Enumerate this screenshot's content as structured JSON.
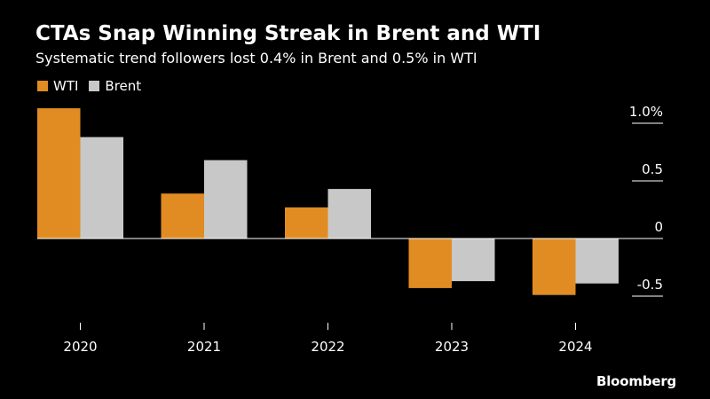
{
  "title": "CTAs Snap Winning Streak in Brent and WTI",
  "subtitle": "Systematic trend followers lost 0.4% in Brent and 0.5% in WTI",
  "source": "Bloomberg",
  "colors": {
    "WTI": "#e08c22",
    "Brent": "#c8c8c8",
    "background": "#000000",
    "zero_line": "#ffffff"
  },
  "chart_data": {
    "type": "bar",
    "title": "CTAs Snap Winning Streak in Brent and WTI",
    "subtitle": "Systematic trend followers lost 0.4% in Brent and 0.5% in WTI",
    "categories": [
      "2020",
      "2021",
      "2022",
      "2023",
      "2024"
    ],
    "series": [
      {
        "name": "WTI",
        "values": [
          1.13,
          0.39,
          0.27,
          -0.43,
          -0.49
        ]
      },
      {
        "name": "Brent",
        "values": [
          0.88,
          0.68,
          0.43,
          -0.37,
          -0.39
        ]
      }
    ],
    "y_ticks": [
      {
        "value": 1.0,
        "label": "1.0%"
      },
      {
        "value": 0.5,
        "label": "0.5"
      },
      {
        "value": 0,
        "label": "0"
      },
      {
        "value": -0.5,
        "label": "-0.5"
      }
    ],
    "ylim": [
      -0.65,
      1.15
    ],
    "y_axis_position": "right",
    "legend": "top-left",
    "grid": false
  }
}
